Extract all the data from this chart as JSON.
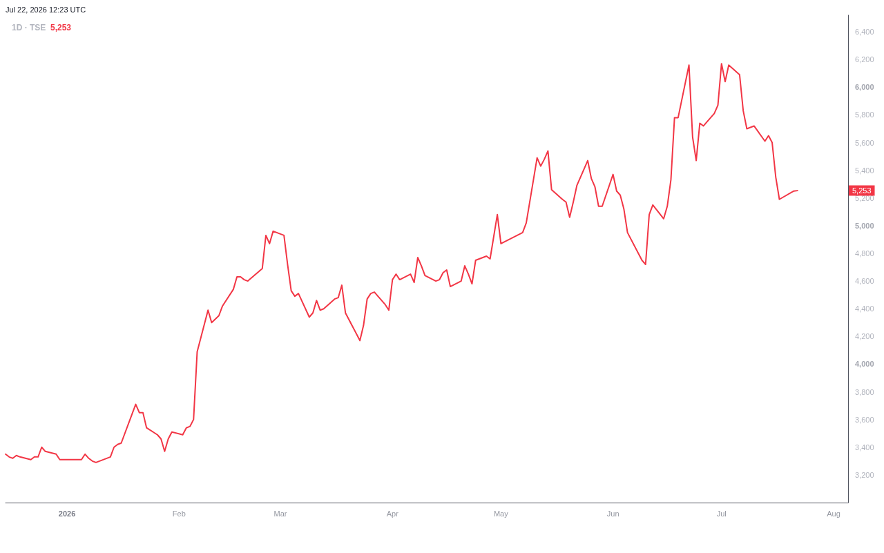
{
  "chart_data": {
    "type": "line",
    "title": "1D · TSE",
    "subtitle": "5,253",
    "annotations": [
      "Jul 22, 2026 12:23 UTC",
      {
        "text": "5,253",
        "y": 5253
      }
    ],
    "x": [
      "2025-12-15",
      "2025-12-16",
      "2025-12-17",
      "2025-12-18",
      "2025-12-19",
      "2025-12-22",
      "2025-12-23",
      "2025-12-24",
      "2025-12-25",
      "2025-12-26",
      "2025-12-29",
      "2025-12-30",
      "2026-01-05",
      "2026-01-06",
      "2026-01-07",
      "2026-01-08",
      "2026-01-09",
      "2026-01-13",
      "2026-01-14",
      "2026-01-15",
      "2026-01-16",
      "2026-01-19",
      "2026-01-20",
      "2026-01-21",
      "2026-01-22",
      "2026-01-23",
      "2026-01-26",
      "2026-01-27",
      "2026-01-28",
      "2026-01-29",
      "2026-01-30",
      "2026-02-02",
      "2026-02-03",
      "2026-02-04",
      "2026-02-05",
      "2026-02-06",
      "2026-02-09",
      "2026-02-10",
      "2026-02-12",
      "2026-02-13",
      "2026-02-16",
      "2026-02-17",
      "2026-02-18",
      "2026-02-19",
      "2026-02-20",
      "2026-02-24",
      "2026-02-25",
      "2026-02-26",
      "2026-02-27",
      "2026-03-02",
      "2026-03-03",
      "2026-03-04",
      "2026-03-05",
      "2026-03-06",
      "2026-03-09",
      "2026-03-10",
      "2026-03-11",
      "2026-03-12",
      "2026-03-13",
      "2026-03-16",
      "2026-03-17",
      "2026-03-18",
      "2026-03-19",
      "2026-03-23",
      "2026-03-24",
      "2026-03-25",
      "2026-03-26",
      "2026-03-27",
      "2026-03-30",
      "2026-03-31",
      "2026-04-01",
      "2026-04-02",
      "2026-04-03",
      "2026-04-06",
      "2026-04-07",
      "2026-04-08",
      "2026-04-09",
      "2026-04-10",
      "2026-04-13",
      "2026-04-14",
      "2026-04-15",
      "2026-04-16",
      "2026-04-17",
      "2026-04-20",
      "2026-04-21",
      "2026-04-22",
      "2026-04-23",
      "2026-04-24",
      "2026-04-27",
      "2026-04-28",
      "2026-04-30",
      "2026-05-01",
      "2026-05-07",
      "2026-05-08",
      "2026-05-11",
      "2026-05-12",
      "2026-05-13",
      "2026-05-14",
      "2026-05-15",
      "2026-05-18",
      "2026-05-19",
      "2026-05-20",
      "2026-05-21",
      "2026-05-22",
      "2026-05-25",
      "2026-05-26",
      "2026-05-27",
      "2026-05-28",
      "2026-05-29",
      "2026-06-01",
      "2026-06-02",
      "2026-06-03",
      "2026-06-04",
      "2026-06-05",
      "2026-06-08",
      "2026-06-09",
      "2026-06-10",
      "2026-06-11",
      "2026-06-12",
      "2026-06-15",
      "2026-06-16",
      "2026-06-17",
      "2026-06-18",
      "2026-06-19",
      "2026-06-22",
      "2026-06-23",
      "2026-06-24",
      "2026-06-25",
      "2026-06-26",
      "2026-06-29",
      "2026-06-30",
      "2026-07-01",
      "2026-07-02",
      "2026-07-03",
      "2026-07-06",
      "2026-07-07",
      "2026-07-08",
      "2026-07-09",
      "2026-07-10",
      "2026-07-13",
      "2026-07-14",
      "2026-07-15",
      "2026-07-16",
      "2026-07-17",
      "2026-07-21",
      "2026-07-22"
    ],
    "values": [
      3350,
      3330,
      3320,
      3340,
      3330,
      3310,
      3330,
      3330,
      3400,
      3370,
      3350,
      3310,
      3310,
      3350,
      3320,
      3300,
      3290,
      3330,
      3400,
      3420,
      3430,
      3640,
      3710,
      3650,
      3650,
      3540,
      3490,
      3460,
      3370,
      3460,
      3510,
      3490,
      3540,
      3550,
      3600,
      4090,
      4390,
      4300,
      4350,
      4420,
      4540,
      4630,
      4630,
      4610,
      4600,
      4690,
      4930,
      4870,
      4960,
      4930,
      4720,
      4530,
      4490,
      4510,
      4340,
      4370,
      4460,
      4390,
      4400,
      4470,
      4480,
      4570,
      4370,
      4170,
      4280,
      4470,
      4510,
      4520,
      4430,
      4390,
      4610,
      4650,
      4610,
      4650,
      4590,
      4770,
      4710,
      4640,
      4600,
      4610,
      4660,
      4680,
      4560,
      4600,
      4710,
      4650,
      4580,
      4750,
      4780,
      4760,
      5080,
      4870,
      4950,
      5020,
      5490,
      5430,
      5480,
      5540,
      5260,
      5190,
      5170,
      5060,
      5170,
      5290,
      5470,
      5340,
      5280,
      5140,
      5140,
      5370,
      5250,
      5220,
      5120,
      4950,
      4800,
      4750,
      4720,
      5080,
      5150,
      5050,
      5140,
      5330,
      5780,
      5780,
      6160,
      5640,
      5470,
      5740,
      5720,
      5810,
      5870,
      6170,
      6040,
      6160,
      6090,
      5830,
      5700,
      5710,
      5720,
      5610,
      5650,
      5600,
      5350,
      5190,
      5250,
      5253
    ],
    "color": "#f23645",
    "xlim": [
      "2025-12-15",
      "2026-08-05"
    ],
    "xticks": [
      {
        "value": "2026-01-01",
        "label": "2026"
      },
      {
        "value": "2026-02-01",
        "label": "Feb"
      },
      {
        "value": "2026-03-01",
        "label": "Mar"
      },
      {
        "value": "2026-04-01",
        "label": "Apr"
      },
      {
        "value": "2026-05-01",
        "label": "May"
      },
      {
        "value": "2026-06-01",
        "label": "Jun"
      },
      {
        "value": "2026-07-01",
        "label": "Jul"
      },
      {
        "value": "2026-08-01",
        "label": "Aug"
      }
    ],
    "ylim": [
      3000,
      6520
    ],
    "yticks": [
      {
        "value": 3200,
        "label": "3,200"
      },
      {
        "value": 3400,
        "label": "3,400"
      },
      {
        "value": 3600,
        "label": "3,600"
      },
      {
        "value": 3800,
        "label": "3,800"
      },
      {
        "value": 4000,
        "label": "4,000"
      },
      {
        "value": 4200,
        "label": "4,200"
      },
      {
        "value": 4400,
        "label": "4,400"
      },
      {
        "value": 4600,
        "label": "4,600"
      },
      {
        "value": 4800,
        "label": "4,800"
      },
      {
        "value": 5000,
        "label": "5,000"
      },
      {
        "value": 5200,
        "label": "5,200"
      },
      {
        "value": 5400,
        "label": "5,400"
      },
      {
        "value": 5600,
        "label": "5,600"
      },
      {
        "value": 5800,
        "label": "5,800"
      },
      {
        "value": 6000,
        "label": "6,000"
      },
      {
        "value": 6200,
        "label": "6,200"
      },
      {
        "value": 6400,
        "label": "6,400"
      }
    ]
  }
}
